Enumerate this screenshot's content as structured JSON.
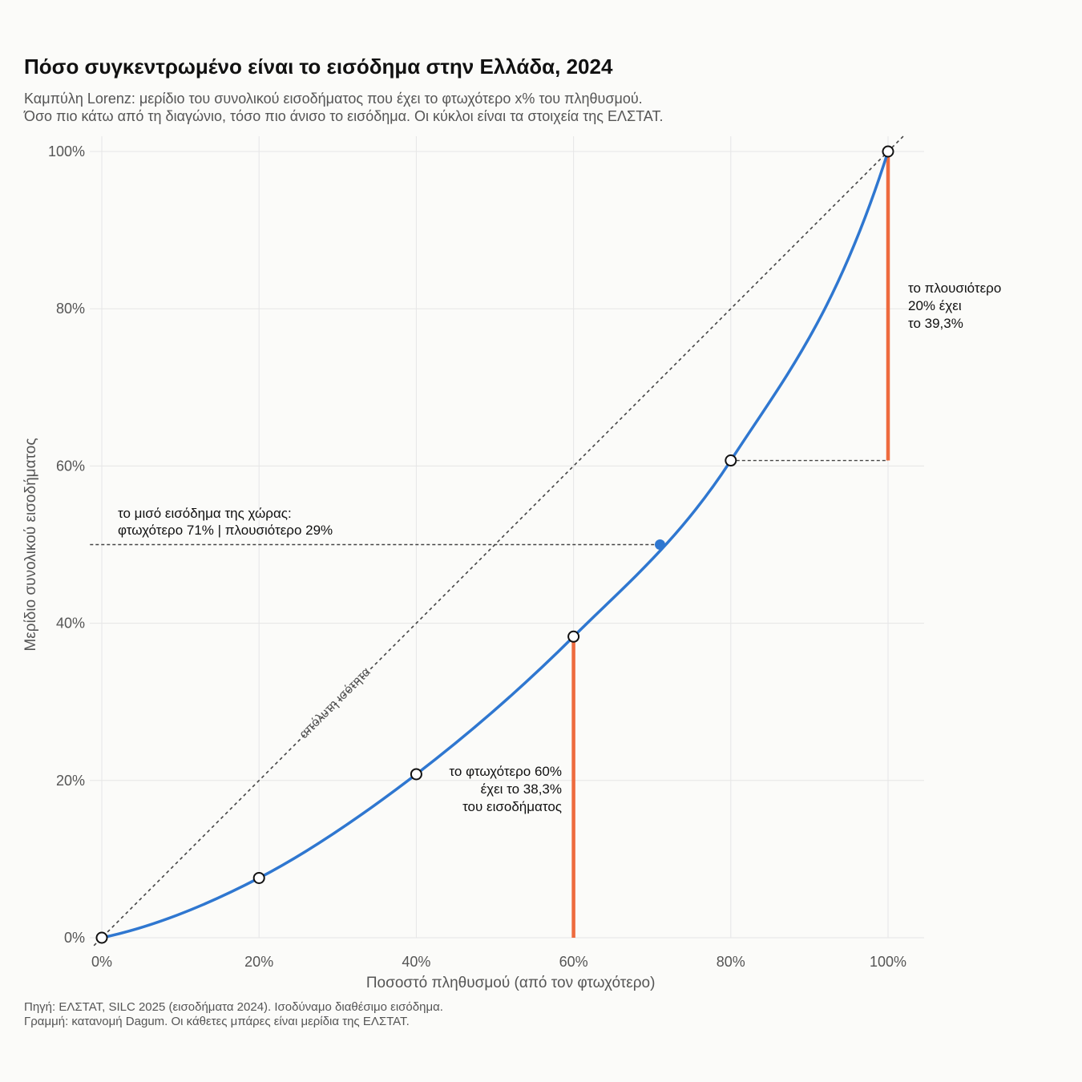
{
  "header": {
    "title": "Πόσο συγκεντρωμένο είναι το εισόδημα στην Ελλάδα, 2024",
    "subtitle_line1": "Καμπύλη Lorenz: μερίδιο του συνολικού εισοδήματος που έχει το φτωχότερο x% του πληθυσμού.",
    "subtitle_line2": "Όσο πιο κάτω από τη διαγώνιο, τόσο πιο άνισο το εισόδημα. Οι κύκλοι είναι τα στοιχεία της ΕΛΣΤΑΤ."
  },
  "footer": {
    "line1": "Πηγή: ΕΛΣΤΑΤ, SILC 2025 (εισοδήματα 2024). Ισοδύναμο διαθέσιμο εισόδημα.",
    "line2": "Γραμμή: κατανομή Dagum. Οι κάθετες μπάρες είναι μερίδια της ΕΛΣΤΑΤ."
  },
  "colors": {
    "curve": "#2f77d0",
    "bars": "#ee6b3e",
    "guide": "#444444",
    "grid": "#e6e6e6"
  },
  "chart_data": {
    "type": "line",
    "xlabel": "Ποσοστό πληθυσμού (από τον φτωχότερο)",
    "ylabel": "Μερίδιο συνολικού εισοδήματος",
    "xlim": [
      0,
      1
    ],
    "ylim": [
      0,
      1
    ],
    "x_ticks": [
      "0%",
      "20%",
      "40%",
      "60%",
      "80%",
      "100%"
    ],
    "y_ticks": [
      "0%",
      "20%",
      "40%",
      "60%",
      "80%",
      "100%"
    ],
    "grid": true,
    "equality_line_label": "απόλυτη ισότητα",
    "elstat_points": [
      {
        "x": 0.0,
        "y": 0.0
      },
      {
        "x": 0.2,
        "y": 0.076
      },
      {
        "x": 0.4,
        "y": 0.208
      },
      {
        "x": 0.6,
        "y": 0.383
      },
      {
        "x": 0.8,
        "y": 0.607
      },
      {
        "x": 1.0,
        "y": 1.0
      }
    ],
    "half_income_point": {
      "x": 0.71,
      "y": 0.5
    },
    "bars": [
      {
        "x": 0.6,
        "y_from": 0.0,
        "y_to": 0.383
      },
      {
        "x": 1.0,
        "y_from": 0.607,
        "y_to": 1.0
      }
    ],
    "annotations": {
      "poorest": [
        "το φτωχότερο 60%",
        "έχει το 38,3%",
        "του εισοδήματος"
      ],
      "richest": [
        "το πλουσιότερο",
        "20% έχει",
        "το 39,3%"
      ],
      "half": [
        "το μισό εισόδημα της χώρας:",
        "φτωχότερο 71% | πλουσιότερο 29%"
      ]
    }
  }
}
